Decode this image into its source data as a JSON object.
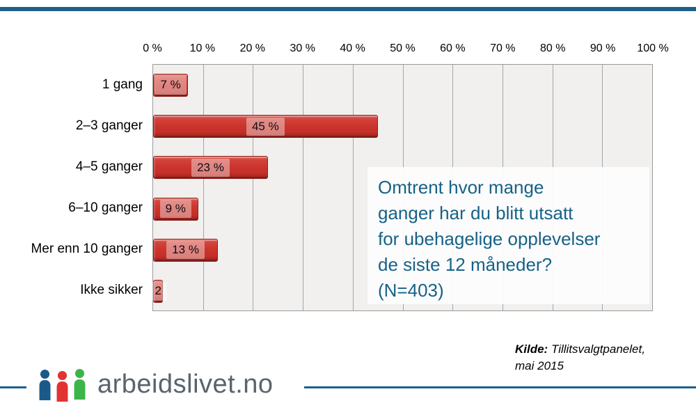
{
  "accent_color": "#1c5f8c",
  "chart_data": {
    "type": "bar",
    "orientation": "horizontal",
    "title": "",
    "xlabel": "",
    "ylabel": "",
    "xlim": [
      0,
      100
    ],
    "grid": "vertical",
    "plot_background": "#f1f0ee",
    "bar_color": "#cb352e",
    "categories": [
      "1 gang",
      "2–3 ganger",
      "4–5 ganger",
      "6–10 ganger",
      "Mer enn 10 ganger",
      "Ikke sikker"
    ],
    "values": [
      7,
      45,
      23,
      9,
      13,
      2
    ],
    "bar_labels": [
      "7 %",
      "45 %",
      "23 %",
      "9 %",
      "13 %",
      "2"
    ],
    "x_ticks": [
      "0 %",
      "10 %",
      "20 %",
      "30 %",
      "40 %",
      "50 %",
      "60 %",
      "70 %",
      "80 %",
      "90 %",
      "100 %"
    ]
  },
  "question_box": {
    "text": "Omtrent hvor mange\nganger har du blitt utsatt\nfor ubehagelige opplevelser\nde siste 12 måneder?\n(N=403)",
    "text_color": "#176287"
  },
  "source": {
    "label": "Kilde:",
    "text": " Tillitsvalgtpanelet,",
    "line2": "mai 2015"
  },
  "footer": {
    "brand": "arbeidslivet.no",
    "logo_colors": {
      "person1": "#1b5a88",
      "person2": "#e23333",
      "person3": "#3db449"
    }
  }
}
